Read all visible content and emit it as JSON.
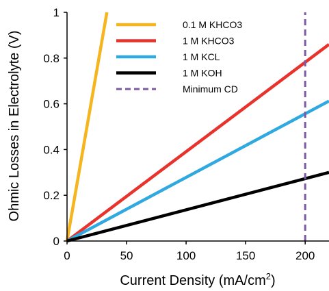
{
  "chart_data": {
    "type": "line",
    "xlabel": "Current Density (mA/cm",
    "xlabel_sup": "2",
    "xlabel_end": ")",
    "ylabel": "Ohmic Losses in Electrolyte (V)",
    "xlim": [
      0,
      220
    ],
    "ylim": [
      0,
      1
    ],
    "x_ticks": [
      0,
      50,
      100,
      150,
      200
    ],
    "y_ticks": [
      0,
      0.2,
      0.4,
      0.6,
      0.8,
      1
    ],
    "x_tick_labels": [
      "0",
      "50",
      "100",
      "150",
      "200"
    ],
    "y_tick_labels": [
      "0",
      "0.2",
      "0.4",
      "0.6",
      "0.8",
      "1"
    ],
    "legend_position": "top-right",
    "grid": false,
    "series": [
      {
        "name": "0.1 M KHCO3",
        "color": "#F5B51E",
        "dashed": false,
        "x": [
          0,
          33.5
        ],
        "y": [
          0,
          1
        ]
      },
      {
        "name": "1 M KHCO3",
        "color": "#E8332D",
        "dashed": false,
        "x": [
          0,
          220
        ],
        "y": [
          0,
          0.86
        ]
      },
      {
        "name": "1 M KCL",
        "color": "#2FA9E0",
        "dashed": false,
        "x": [
          0,
          220
        ],
        "y": [
          0,
          0.612
        ]
      },
      {
        "name": "1 M KOH",
        "color": "#000000",
        "dashed": false,
        "x": [
          0,
          220
        ],
        "y": [
          0,
          0.3
        ]
      },
      {
        "name": "Minimum CD",
        "color": "#7A5BA3",
        "dashed": true,
        "x": [
          200,
          200
        ],
        "y": [
          0,
          1
        ]
      }
    ]
  }
}
